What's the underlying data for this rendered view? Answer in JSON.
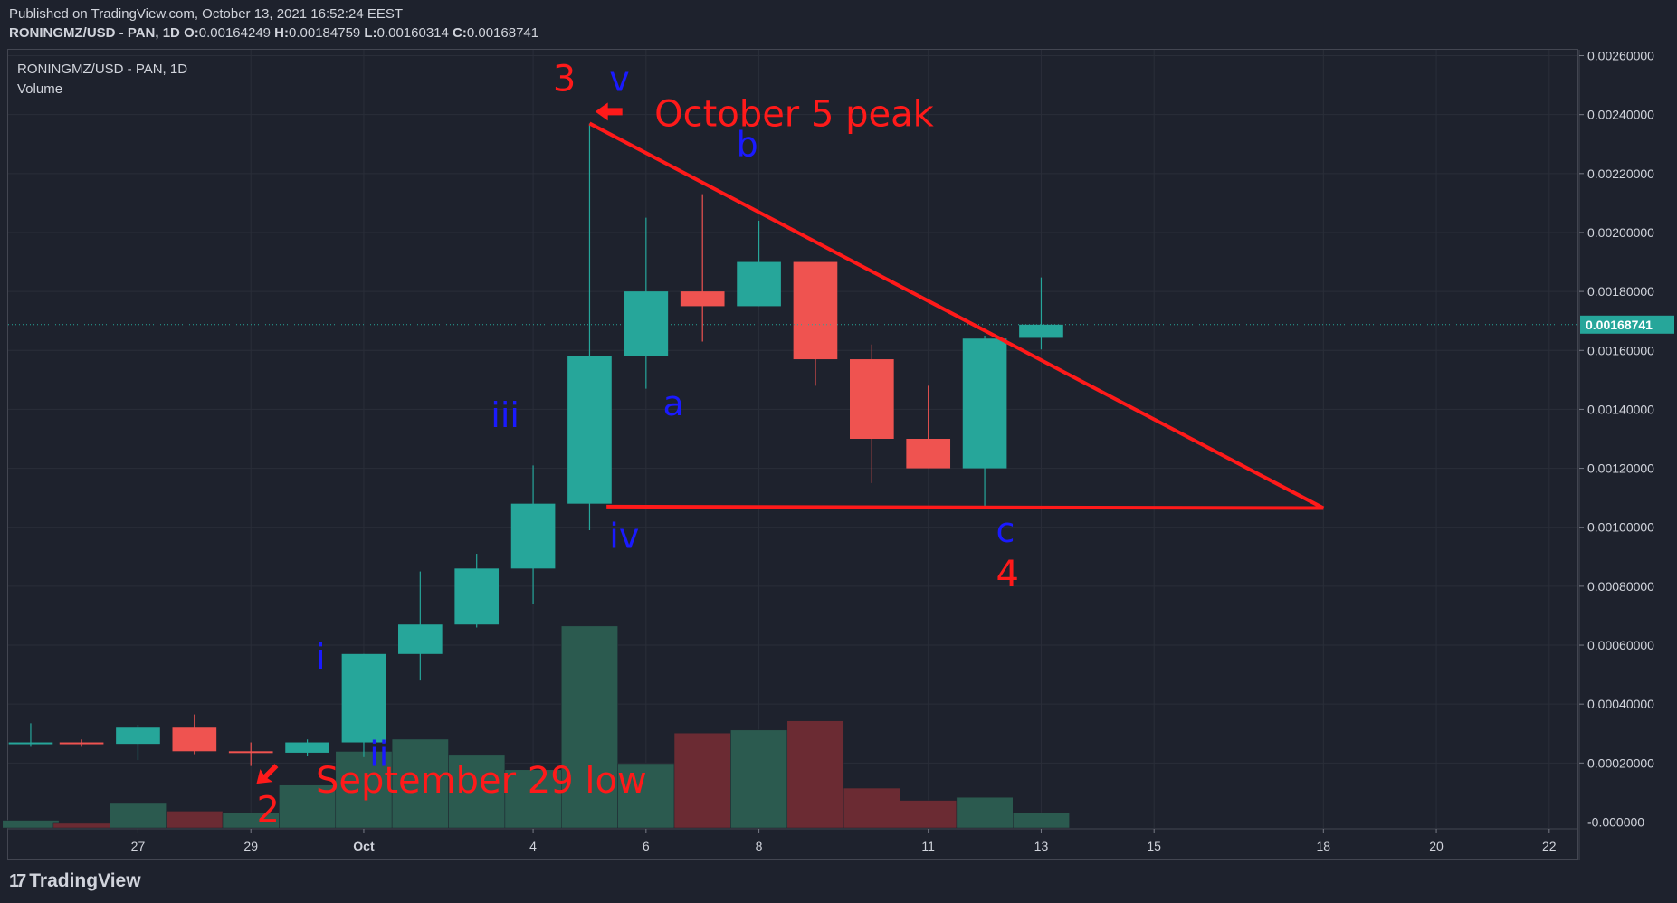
{
  "header": {
    "published": "Published on TradingView.com, October 13, 2021 16:52:24 EEST",
    "symbol_line": "RONINGMZ/USD - PAN, 1D",
    "o_label": "O:",
    "o_value": "0.00164249",
    "h_label": "H:",
    "h_value": "0.00184759",
    "l_label": "L:",
    "l_value": "0.00160314",
    "c_label": "C:",
    "c_value": "0.00168741"
  },
  "legend": {
    "symbol": "RONINGMZ/USD - PAN, 1D",
    "volume": "Volume"
  },
  "footer": {
    "brand": "TradingView",
    "logo_icon": "tradingview-logo-icon"
  },
  "colors": {
    "background": "#1e222d",
    "grid": "#2a2e39",
    "up": "#26a69a",
    "down": "#ef5350",
    "vol_up": "#2b5a4f",
    "vol_down": "#6b2b33",
    "annotation_red": "#ff1a1a",
    "annotation_blue": "#1a1aff",
    "last_price_bg": "#26a69a"
  },
  "chart_data": {
    "type": "candlestick",
    "title": "RONINGMZ/USD - PAN, 1D",
    "y_range": [
      -2e-05,
      0.00262
    ],
    "y_ticks": [
      "0.00260000",
      "0.00240000",
      "0.00220000",
      "0.00200000",
      "0.00180000",
      "0.00160000",
      "0.00140000",
      "0.00120000",
      "0.00100000",
      "0.00080000",
      "0.00060000",
      "0.00040000",
      "0.00020000",
      "-0.000000"
    ],
    "y_tick_values": [
      0.0026,
      0.0024,
      0.0022,
      0.002,
      0.0018,
      0.0016,
      0.0014,
      0.0012,
      0.001,
      0.0008,
      0.0006,
      0.0004,
      0.0002,
      0
    ],
    "x_ticks": [
      {
        "label": "27",
        "day": -4
      },
      {
        "label": "29",
        "day": -2
      },
      {
        "label": "Oct",
        "day": 0
      },
      {
        "label": "4",
        "day": 3
      },
      {
        "label": "6",
        "day": 5
      },
      {
        "label": "8",
        "day": 7
      },
      {
        "label": "11",
        "day": 10
      },
      {
        "label": "13",
        "day": 12
      },
      {
        "label": "15",
        "day": 14
      },
      {
        "label": "18",
        "day": 17
      },
      {
        "label": "20",
        "day": 19
      },
      {
        "label": "22",
        "day": 21
      }
    ],
    "x_range_days": [
      -6.3,
      21.5
    ],
    "candles": [
      {
        "day": -5.9,
        "o": 0.000265,
        "h": 0.000335,
        "l": 0.000255,
        "c": 0.00027
      },
      {
        "day": -5,
        "o": 0.00027,
        "h": 0.00028,
        "l": 0.000255,
        "c": 0.000265
      },
      {
        "day": -4,
        "o": 0.000265,
        "h": 0.00033,
        "l": 0.00021,
        "c": 0.00032
      },
      {
        "day": -3,
        "o": 0.00032,
        "h": 0.000365,
        "l": 0.00023,
        "c": 0.00024
      },
      {
        "day": -2,
        "o": 0.00024,
        "h": 0.00027,
        "l": 0.00019,
        "c": 0.000235
      },
      {
        "day": -1,
        "o": 0.000235,
        "h": 0.00028,
        "l": 0.000225,
        "c": 0.00027
      },
      {
        "day": 0,
        "o": 0.00027,
        "h": 0.00057,
        "l": 0.00022,
        "c": 0.00057
      },
      {
        "day": 1,
        "o": 0.00057,
        "h": 0.00085,
        "l": 0.00048,
        "c": 0.00067
      },
      {
        "day": 2,
        "o": 0.00067,
        "h": 0.00091,
        "l": 0.00066,
        "c": 0.00086
      },
      {
        "day": 3,
        "o": 0.00086,
        "h": 0.00121,
        "l": 0.00074,
        "c": 0.00108
      },
      {
        "day": 4,
        "o": 0.00108,
        "h": 0.00237,
        "l": 0.00099,
        "c": 0.00158
      },
      {
        "day": 5,
        "o": 0.00158,
        "h": 0.00205,
        "l": 0.00147,
        "c": 0.0018
      },
      {
        "day": 6,
        "o": 0.0018,
        "h": 0.00213,
        "l": 0.00163,
        "c": 0.00175
      },
      {
        "day": 7,
        "o": 0.00175,
        "h": 0.00204,
        "l": 0.00175,
        "c": 0.0019
      },
      {
        "day": 8,
        "o": 0.0019,
        "h": 0.0019,
        "l": 0.00148,
        "c": 0.00157
      },
      {
        "day": 9,
        "o": 0.00157,
        "h": 0.00162,
        "l": 0.00115,
        "c": 0.0013
      },
      {
        "day": 10,
        "o": 0.0013,
        "h": 0.00148,
        "l": 0.0012,
        "c": 0.0012
      },
      {
        "day": 11,
        "o": 0.0012,
        "h": 0.00165,
        "l": 0.00107,
        "c": 0.00164
      },
      {
        "day": 12,
        "o": 0.00164249,
        "h": 0.00184759,
        "l": 0.00160314,
        "c": 0.00168741
      }
    ],
    "volume": [
      {
        "day": -5.9,
        "v": 2.5e-05,
        "up": true
      },
      {
        "day": -5,
        "v": 1.5e-05,
        "up": false
      },
      {
        "day": -4,
        "v": 8e-05,
        "up": true
      },
      {
        "day": -3,
        "v": 5.5e-05,
        "up": false
      },
      {
        "day": -2,
        "v": 5e-05,
        "up": true
      },
      {
        "day": -1,
        "v": 0.00014,
        "up": true
      },
      {
        "day": 0,
        "v": 0.00025,
        "up": true
      },
      {
        "day": 1,
        "v": 0.00029,
        "up": true
      },
      {
        "day": 2,
        "v": 0.00024,
        "up": true
      },
      {
        "day": 3,
        "v": 0.00019,
        "up": true
      },
      {
        "day": 4,
        "v": 0.00066,
        "up": true
      },
      {
        "day": 5,
        "v": 0.00021,
        "up": true
      },
      {
        "day": 6,
        "v": 0.00031,
        "up": false
      },
      {
        "day": 7,
        "v": 0.00032,
        "up": true
      },
      {
        "day": 8,
        "v": 0.00035,
        "up": false
      },
      {
        "day": 9,
        "v": 0.00013,
        "up": false
      },
      {
        "day": 10,
        "v": 9e-05,
        "up": false
      },
      {
        "day": 11,
        "v": 0.0001,
        "up": true
      },
      {
        "day": 12,
        "v": 5e-05,
        "up": true
      }
    ],
    "last_price": "0.00168741",
    "last_price_value": 0.00168741,
    "trendlines": [
      {
        "from": {
          "day": 4,
          "price": 0.00237
        },
        "to": {
          "day": 17,
          "price": 0.001065
        }
      },
      {
        "from": {
          "day": 4.3,
          "price": 0.00107
        },
        "to": {
          "day": 17,
          "price": 0.001065
        }
      }
    ],
    "annotations": [
      {
        "text": "3",
        "day": 3.35,
        "price": 0.00248,
        "color": "red",
        "size": 40
      },
      {
        "text": "v",
        "day": 4.35,
        "price": 0.00248,
        "color": "blue",
        "size": 38
      },
      {
        "text": "October 5 peak",
        "day": 5.15,
        "price": 0.00236,
        "color": "red",
        "size": 40
      },
      {
        "text": "b",
        "day": 6.6,
        "price": 0.00226,
        "color": "blue",
        "size": 38
      },
      {
        "text": "a",
        "day": 5.3,
        "price": 0.00138,
        "color": "blue",
        "size": 38
      },
      {
        "text": "iii",
        "day": 2.25,
        "price": 0.00134,
        "color": "blue",
        "size": 38
      },
      {
        "text": "iv",
        "day": 4.35,
        "price": 0.00093,
        "color": "blue",
        "size": 38
      },
      {
        "text": "c",
        "day": 11.2,
        "price": 0.00095,
        "color": "blue",
        "size": 38
      },
      {
        "text": "4",
        "day": 11.2,
        "price": 0.0008,
        "color": "red",
        "size": 40
      },
      {
        "text": "i",
        "day": -0.85,
        "price": 0.00052,
        "color": "blue",
        "size": 38
      },
      {
        "text": "ii",
        "day": 0.1,
        "price": 0.00019,
        "color": "blue",
        "size": 38
      },
      {
        "text": "2",
        "day": -1.9,
        "price": 0.0,
        "color": "red",
        "size": 40
      },
      {
        "text": "September 29 low",
        "day": -0.85,
        "price": 0.0001,
        "color": "red",
        "size": 40
      }
    ],
    "arrows": [
      {
        "day": 4.1,
        "price": 0.00241,
        "direction": "left"
      },
      {
        "day": -1.9,
        "price": 0.00013,
        "direction": "down-left"
      }
    ]
  }
}
